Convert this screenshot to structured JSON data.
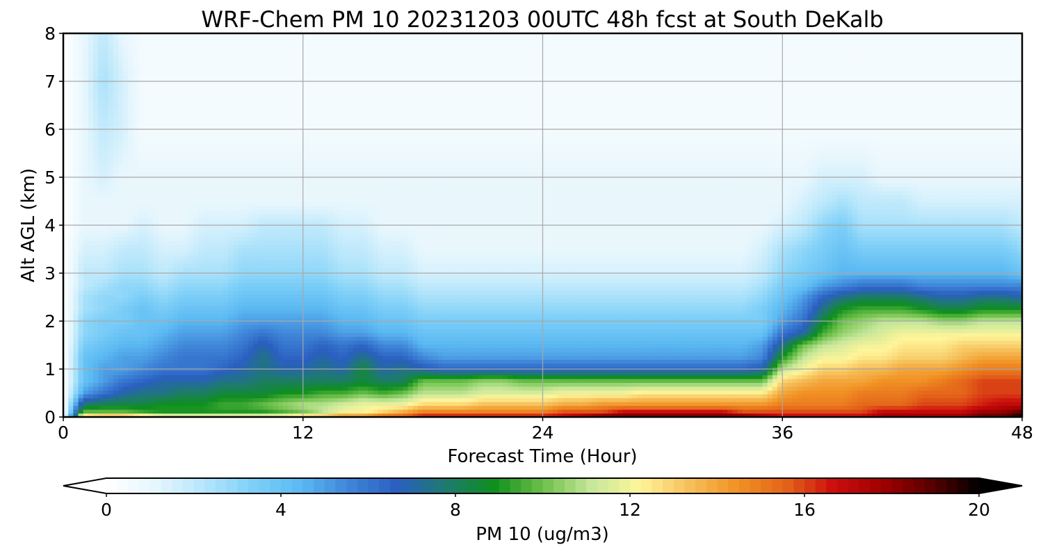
{
  "chart_data": {
    "type": "heatmap",
    "title": "WRF-Chem PM 10  20231203 00UTC 48h fcst at South DeKalb",
    "xlabel": "Forecast Time (Hour)",
    "ylabel": "Alt AGL (km)",
    "xlim": [
      0,
      48
    ],
    "ylim": [
      0,
      8
    ],
    "x_ticks": [
      "0",
      "12",
      "24",
      "36",
      "48"
    ],
    "y_ticks": [
      "0",
      "1",
      "2",
      "3",
      "4",
      "5",
      "6",
      "7",
      "8"
    ],
    "grid": true,
    "colorbar": {
      "label": "PM 10  (ug/m3)",
      "range": [
        0,
        20
      ],
      "ticks": [
        "0",
        "4",
        "8",
        "12",
        "16",
        "20"
      ],
      "extend": "both",
      "colors": [
        "#ffffff",
        "#e6f6fd",
        "#b6e6fb",
        "#7fd0f8",
        "#5bb9f2",
        "#3f85d8",
        "#2a5fc0",
        "#1e7a6f",
        "#0f8f1e",
        "#6ec04a",
        "#c6e79a",
        "#fff59a",
        "#f6c15c",
        "#f19224",
        "#e4651a",
        "#cc0d0d",
        "#a00000",
        "#5a0000",
        "#000000"
      ]
    },
    "x_hours": [
      0,
      1,
      2,
      3,
      4,
      5,
      6,
      7,
      8,
      9,
      10,
      11,
      12,
      13,
      14,
      15,
      16,
      17,
      18,
      19,
      20,
      21,
      22,
      23,
      24,
      25,
      26,
      27,
      28,
      29,
      30,
      31,
      32,
      33,
      34,
      35,
      36,
      37,
      38,
      39,
      40,
      41,
      42,
      43,
      44,
      45,
      46,
      47,
      48
    ],
    "y_km": [
      0,
      0.1,
      0.25,
      0.5,
      0.75,
      1,
      1.25,
      1.5,
      1.75,
      2,
      2.25,
      2.5,
      2.75,
      3,
      3.5,
      4,
      4.5,
      5,
      6,
      7,
      8
    ],
    "values_by_level": [
      [
        0,
        14,
        15,
        15,
        14,
        13,
        13,
        13,
        13,
        13,
        13,
        13,
        14,
        14,
        15,
        15,
        16,
        16,
        17,
        17,
        17,
        17,
        17,
        17,
        17,
        17,
        18,
        19,
        19,
        19,
        19,
        19,
        19,
        19,
        19,
        18,
        17,
        17,
        17,
        17,
        17,
        18,
        18,
        18,
        18,
        18,
        19,
        19,
        20
      ],
      [
        0,
        10,
        10,
        10,
        9.5,
        9,
        9,
        9,
        9,
        9,
        9,
        9.5,
        10,
        11,
        12,
        12,
        13,
        14,
        15,
        15,
        15,
        15,
        15,
        15,
        15,
        16,
        16,
        16,
        17,
        17,
        17,
        17,
        17,
        17,
        16,
        16,
        16,
        16,
        16,
        16,
        16,
        17,
        17,
        17,
        17,
        17,
        18,
        18,
        19
      ],
      [
        0,
        8,
        8.5,
        8.5,
        8.5,
        9,
        9,
        9,
        9.5,
        9.5,
        10,
        10.5,
        11,
        11,
        11.5,
        12,
        12,
        12,
        13,
        13,
        13,
        13.5,
        13.5,
        13.5,
        13.5,
        14,
        14,
        14.5,
        14.5,
        14.5,
        14.5,
        14.5,
        14.5,
        14.5,
        14.5,
        14.5,
        15,
        15,
        15,
        15,
        15.5,
        15.5,
        15.5,
        16,
        16,
        16,
        16.5,
        17,
        17
      ],
      [
        0,
        5,
        6,
        7,
        7.5,
        7.5,
        8,
        8,
        8.5,
        8.5,
        8.5,
        9,
        9,
        9.5,
        9.5,
        10,
        9.5,
        10,
        11,
        11,
        11,
        11.5,
        11.5,
        11.5,
        11.5,
        12,
        12,
        12,
        12,
        12.5,
        12.5,
        12.5,
        12.5,
        12.5,
        12.5,
        12.5,
        14,
        14.5,
        14.5,
        14.5,
        15,
        15,
        15,
        15.5,
        15.5,
        15.5,
        16,
        16,
        16
      ],
      [
        0,
        4,
        5,
        6,
        6.5,
        7,
        7,
        7,
        7.5,
        7.5,
        8,
        8,
        8,
        8,
        8,
        8.5,
        8,
        8,
        10,
        10,
        10,
        10.5,
        10.5,
        10,
        10,
        10,
        10,
        10,
        10,
        10,
        10,
        10,
        10,
        10,
        10,
        10,
        13,
        13.5,
        14,
        14,
        14,
        14.5,
        14.5,
        14.5,
        15,
        15.5,
        16,
        16,
        16
      ],
      [
        0,
        4,
        5,
        5,
        5.5,
        6,
        6,
        6,
        6.5,
        7,
        7.5,
        7,
        7,
        7.5,
        7,
        8.5,
        7,
        7.5,
        7,
        6.5,
        6.5,
        6.5,
        6.5,
        6.5,
        6.5,
        6.5,
        6.5,
        6.5,
        6.5,
        6.5,
        6.5,
        6.5,
        6.5,
        6.5,
        6.5,
        7,
        11,
        12,
        13,
        13,
        13.5,
        13.5,
        14,
        14,
        14,
        14.5,
        15,
        15,
        15
      ],
      [
        0,
        4,
        4.5,
        5,
        5,
        5.5,
        6,
        6,
        6,
        6.5,
        7.5,
        6.5,
        6.5,
        7,
        6.5,
        7.5,
        6.5,
        6.5,
        5.5,
        5,
        5,
        5,
        5,
        5,
        5,
        5,
        5,
        5,
        5,
        5,
        5,
        5,
        5,
        5,
        5,
        5.5,
        9,
        11,
        12,
        12,
        12.5,
        12.5,
        13,
        13,
        13,
        13.5,
        14,
        14,
        14
      ],
      [
        0,
        3.5,
        4,
        4.5,
        4.5,
        5,
        5.5,
        5.5,
        5.5,
        6,
        7,
        6,
        6,
        6.5,
        6,
        6.5,
        5.5,
        5.5,
        4.5,
        4.5,
        4.5,
        4.5,
        4.5,
        4.5,
        4.5,
        4.5,
        4.5,
        4.5,
        4.5,
        4.5,
        4.5,
        4.5,
        4.5,
        4.5,
        4.5,
        5,
        7.5,
        10,
        11,
        11.5,
        12,
        12,
        12.5,
        12.5,
        12.5,
        13,
        13,
        13,
        13
      ],
      [
        0,
        3,
        3.5,
        4,
        4,
        4.5,
        5,
        5,
        5,
        5.5,
        6,
        5.5,
        5.5,
        5.5,
        5,
        5,
        4.5,
        4.5,
        4,
        4,
        4,
        4,
        4,
        4,
        4,
        4,
        4,
        4,
        4,
        4,
        4,
        4,
        4,
        4,
        4,
        4,
        6,
        7,
        9.5,
        10.5,
        11,
        11.5,
        12,
        12,
        12,
        12,
        12,
        12,
        12
      ],
      [
        0,
        3,
        3.5,
        3.5,
        4,
        4,
        4.5,
        4.5,
        4.5,
        5,
        5,
        5,
        5,
        5,
        4.5,
        4.5,
        4,
        4,
        3.5,
        3.5,
        3.5,
        3.5,
        3.5,
        3.5,
        3.5,
        3.5,
        3.5,
        3.5,
        3.5,
        3.5,
        3.5,
        3.5,
        3.5,
        3.5,
        3.5,
        3.5,
        5,
        6,
        8.5,
        10,
        10.5,
        11,
        11,
        11,
        10.5,
        10.5,
        11,
        11,
        11
      ],
      [
        0,
        2.5,
        3,
        3.5,
        4,
        3.5,
        4,
        4,
        4,
        4.5,
        4.5,
        4.5,
        4.5,
        4.5,
        4,
        4,
        3.5,
        3.5,
        3,
        3,
        3,
        3,
        3,
        3,
        3,
        3,
        3,
        3,
        3,
        3,
        3,
        3,
        3,
        3,
        3,
        3.5,
        4.5,
        5.5,
        7.5,
        9,
        9.5,
        9.5,
        9.5,
        9,
        8.5,
        8.5,
        9,
        9,
        9
      ],
      [
        0,
        2.5,
        3,
        3,
        3.5,
        3,
        3.5,
        3.5,
        3.5,
        4,
        4,
        4,
        4,
        4,
        3.5,
        3.5,
        3,
        3,
        2.5,
        2.5,
        2.5,
        2.5,
        2.5,
        2.5,
        2.5,
        2.5,
        2.5,
        2.5,
        2.5,
        2.5,
        2.5,
        2.5,
        2.5,
        2.5,
        2.5,
        3,
        4,
        5,
        6.5,
        7.5,
        8,
        8,
        8,
        7.5,
        7,
        7,
        7.5,
        7.5,
        7
      ],
      [
        0,
        2,
        2.5,
        3,
        3,
        2.5,
        3,
        3,
        3,
        3.5,
        3.5,
        3.5,
        3.5,
        3.5,
        3,
        3,
        2.5,
        2.5,
        2,
        2,
        2,
        2,
        2,
        2,
        2,
        2,
        2,
        2,
        2,
        2,
        2,
        2,
        2,
        2,
        2,
        2.5,
        3.5,
        4,
        5,
        5.5,
        6,
        6,
        6,
        5.5,
        5.5,
        5.5,
        5.5,
        5.5,
        5.5
      ],
      [
        0,
        2,
        2,
        2.5,
        2.5,
        2,
        2.5,
        2.5,
        2.5,
        3,
        3,
        3,
        3,
        3,
        2.5,
        2.5,
        2,
        2,
        1.5,
        1.5,
        1.5,
        1.5,
        1.5,
        1.5,
        1.5,
        1.5,
        1.5,
        1.5,
        1.5,
        1.5,
        1.5,
        1.5,
        1.5,
        1.5,
        1.5,
        2,
        3,
        3.5,
        4,
        4.5,
        4.5,
        4.5,
        4.5,
        4.5,
        4.5,
        4.5,
        4.5,
        4.5,
        4
      ],
      [
        0,
        1.5,
        1.5,
        2,
        2,
        1.5,
        1.5,
        2,
        2,
        2.5,
        2.5,
        2.5,
        2.5,
        2.5,
        2,
        2,
        1.5,
        1.5,
        1,
        1,
        1,
        1,
        1,
        1,
        1,
        1,
        1,
        1,
        1,
        1,
        1,
        1,
        1,
        1,
        1,
        1.5,
        2.5,
        3,
        3.5,
        4,
        3.5,
        3.5,
        3.5,
        3.5,
        3.5,
        3.5,
        3.5,
        3.5,
        3
      ],
      [
        0,
        1,
        1,
        1,
        1.5,
        1,
        1,
        1.5,
        1.5,
        1.5,
        2,
        2,
        2,
        2,
        1.5,
        1.5,
        1,
        1,
        1,
        1,
        1,
        1,
        1,
        1,
        1,
        1,
        1,
        1,
        1,
        1,
        1,
        1,
        1,
        1,
        1,
        1,
        1.5,
        2,
        3,
        3.5,
        2.5,
        2.5,
        2.5,
        2.5,
        2.5,
        2.5,
        2.5,
        2.5,
        2
      ],
      [
        0,
        1,
        1,
        1,
        1,
        1,
        1,
        1,
        1,
        1,
        1,
        1,
        1,
        1,
        1,
        1,
        1,
        1,
        1,
        1,
        1,
        1,
        1,
        1,
        1,
        1,
        1,
        1,
        1,
        1,
        1,
        1,
        1,
        1,
        1,
        1,
        1,
        1.5,
        2,
        2.5,
        2,
        2,
        2,
        1.5,
        1.5,
        1.5,
        1.5,
        1.5,
        1.5
      ],
      [
        0,
        1,
        1.5,
        1,
        1,
        1,
        1,
        1,
        1,
        1,
        1,
        1,
        1,
        1,
        1,
        1,
        1,
        1,
        1,
        1,
        1,
        1,
        1,
        1,
        1,
        1,
        1,
        1,
        1,
        1,
        1,
        1,
        1,
        1,
        1,
        1,
        1,
        1,
        1.5,
        1.5,
        1.5,
        1,
        1,
        1,
        1,
        1,
        1,
        1,
        1
      ],
      [
        0,
        1,
        2,
        1.5,
        0.5,
        0.5,
        0.5,
        0.5,
        0.5,
        0.5,
        0.5,
        0.5,
        0.5,
        0.5,
        0.5,
        0.5,
        0.5,
        0.5,
        0.5,
        0.5,
        0.5,
        0.5,
        0.5,
        0.5,
        0.5,
        0.5,
        0.5,
        0.5,
        0.5,
        0.5,
        0.5,
        0.5,
        0.5,
        0.5,
        0.5,
        0.5,
        0.5,
        0.5,
        0.5,
        0.5,
        0.5,
        0.5,
        0.5,
        0.5,
        0.5,
        0.5,
        0.5,
        0.5,
        0.5
      ],
      [
        0,
        1,
        2.5,
        1.5,
        0.5,
        0.5,
        0.5,
        0.5,
        0.5,
        0.5,
        0.5,
        0.5,
        0.5,
        0.5,
        0.5,
        0.5,
        0.5,
        0.5,
        0.5,
        0.5,
        0.5,
        0.5,
        0.5,
        0.5,
        0.5,
        0.5,
        0.5,
        0.5,
        0.5,
        0.5,
        0.5,
        0.5,
        0.5,
        0.5,
        0.5,
        0.5,
        0.5,
        0.5,
        0.5,
        0.5,
        0.5,
        0.5,
        0.5,
        0.5,
        0.5,
        0.5,
        0.5,
        0.5,
        0.5
      ],
      [
        0,
        1,
        2,
        1,
        0.5,
        0.5,
        0.5,
        0.5,
        0.5,
        0.5,
        0.5,
        0.5,
        0.5,
        0.5,
        0.5,
        0.5,
        0.5,
        0.5,
        0.5,
        0.5,
        0.5,
        0.5,
        0.5,
        0.5,
        0.5,
        0.5,
        0.5,
        0.5,
        0.5,
        0.5,
        0.5,
        0.5,
        0.5,
        0.5,
        0.5,
        0.5,
        0.5,
        0.5,
        0.5,
        0.5,
        0.5,
        0.5,
        0.5,
        0.5,
        0.5,
        0.5,
        0.5,
        0.5,
        0.5
      ]
    ]
  }
}
